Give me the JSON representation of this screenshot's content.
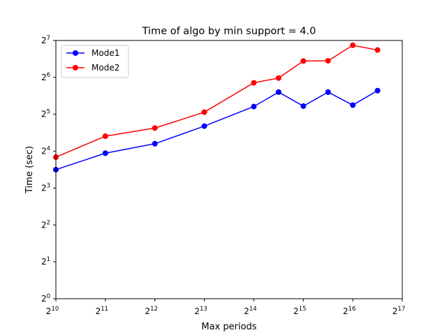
{
  "chart_data": {
    "type": "line",
    "title": "Time of algo by min support = 4.0",
    "xlabel": "Max periods",
    "ylabel": "Time (sec)",
    "xscale": "log2",
    "yscale": "log2",
    "xlim": [
      10,
      17
    ],
    "ylim": [
      0,
      7
    ],
    "x": [
      1024,
      2048,
      4096,
      8192,
      16384,
      23170,
      32768,
      46341,
      65536,
      92682
    ],
    "series": [
      {
        "name": "Mode1",
        "color": "#0000ff",
        "values": [
          11.3,
          15.4,
          18.4,
          25.6,
          37.0,
          48.5,
          37.3,
          48.5,
          38.0,
          49.9
        ]
      },
      {
        "name": "Mode2",
        "color": "#ff0000",
        "values": [
          14.3,
          21.2,
          24.7,
          33.3,
          57.8,
          63.2,
          87.0,
          87.4,
          117.0,
          107.0
        ]
      }
    ],
    "xticks": [
      {
        "base": "2",
        "exp": "10"
      },
      {
        "base": "2",
        "exp": "11"
      },
      {
        "base": "2",
        "exp": "12"
      },
      {
        "base": "2",
        "exp": "13"
      },
      {
        "base": "2",
        "exp": "14"
      },
      {
        "base": "2",
        "exp": "15"
      },
      {
        "base": "2",
        "exp": "16"
      },
      {
        "base": "2",
        "exp": "17"
      }
    ],
    "yticks": [
      {
        "base": "2",
        "exp": "0"
      },
      {
        "base": "2",
        "exp": "1"
      },
      {
        "base": "2",
        "exp": "2"
      },
      {
        "base": "2",
        "exp": "3"
      },
      {
        "base": "2",
        "exp": "4"
      },
      {
        "base": "2",
        "exp": "5"
      },
      {
        "base": "2",
        "exp": "6"
      },
      {
        "base": "2",
        "exp": "7"
      }
    ],
    "legend_position": "upper-left",
    "grid": false
  }
}
